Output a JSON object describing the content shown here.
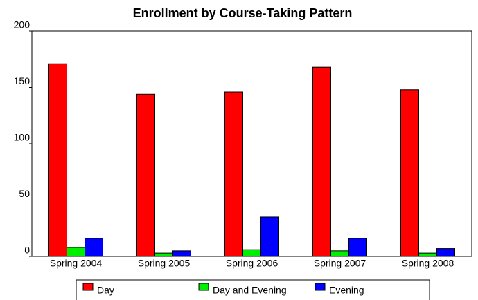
{
  "chart_data": {
    "type": "bar",
    "title": "Enrollment by Course-Taking Pattern",
    "categories": [
      "Spring 2004",
      "Spring 2005",
      "Spring 2006",
      "Spring 2007",
      "Spring 2008"
    ],
    "series": [
      {
        "name": "Day",
        "color": "#ff0000",
        "values": [
          171,
          144,
          146,
          168,
          148
        ]
      },
      {
        "name": "Day and Evening",
        "color": "#00ee00",
        "values": [
          8,
          3,
          6,
          5,
          3
        ]
      },
      {
        "name": "Evening",
        "color": "#0000ff",
        "values": [
          16,
          5,
          35,
          16,
          7
        ]
      }
    ],
    "ylim": [
      0,
      200
    ],
    "yticks": [
      0,
      50,
      100,
      150,
      200
    ],
    "legend": "bottom"
  }
}
